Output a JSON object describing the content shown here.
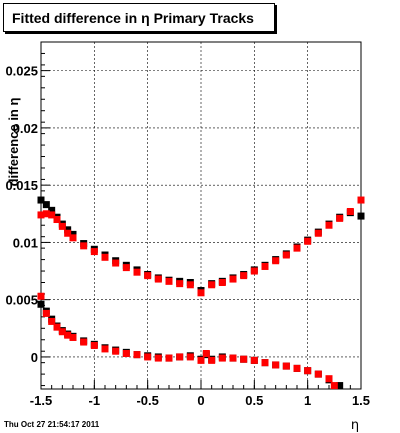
{
  "header": {
    "title": "Fitted difference in  η  Primary Tracks"
  },
  "footer": {
    "timestamp": "Thu Oct 27 21:54:17 2011"
  },
  "chart_data": {
    "type": "scatter",
    "title": "Fitted difference in  η  Primary Tracks",
    "xlabel": "η",
    "ylabel": "difference in η",
    "xlim": [
      -1.5,
      1.5
    ],
    "ylim": [
      -0.0028,
      0.0275
    ],
    "grid": true,
    "x_ticks": [
      -1.5,
      -1,
      -0.5,
      0,
      0.5,
      1,
      1.5
    ],
    "x_tick_labels": [
      "-1.5",
      "-1",
      "-0.5",
      "0",
      "0.5",
      "1",
      "1.5"
    ],
    "y_ticks": [
      0,
      0.005,
      0.01,
      0.015,
      0.02,
      0.025
    ],
    "y_tick_labels": [
      "0",
      "0.005",
      "0.01",
      "0.015",
      "0.02",
      "0.025"
    ],
    "series": [
      {
        "marker": "square",
        "color": "#000000",
        "upper": [
          [
            -1.5,
            0.0137
          ],
          [
            -1.45,
            0.0133
          ],
          [
            -1.4,
            0.0128
          ],
          [
            -1.35,
            0.0122
          ],
          [
            -1.3,
            0.0116
          ],
          [
            -1.25,
            0.0111
          ],
          [
            -1.2,
            0.0107
          ],
          [
            -1.1,
            0.0099
          ],
          [
            -1.0,
            0.0094
          ],
          [
            -0.9,
            0.0089
          ],
          [
            -0.8,
            0.0084
          ],
          [
            -0.7,
            0.008
          ],
          [
            -0.6,
            0.0076
          ],
          [
            -0.5,
            0.0072
          ],
          [
            -0.4,
            0.0069
          ],
          [
            -0.3,
            0.0067
          ],
          [
            -0.2,
            0.0066
          ],
          [
            -0.1,
            0.0065
          ],
          [
            0.0,
            0.0058
          ],
          [
            0.1,
            0.0064
          ],
          [
            0.2,
            0.0066
          ],
          [
            0.3,
            0.0069
          ],
          [
            0.4,
            0.0072
          ],
          [
            0.5,
            0.0076
          ],
          [
            0.6,
            0.008
          ],
          [
            0.7,
            0.0085
          ],
          [
            0.8,
            0.009
          ],
          [
            0.9,
            0.0096
          ],
          [
            1.0,
            0.0102
          ],
          [
            1.1,
            0.0109
          ],
          [
            1.2,
            0.0116
          ],
          [
            1.3,
            0.0122
          ],
          [
            1.4,
            0.0126
          ],
          [
            1.5,
            0.0123
          ]
        ],
        "lower": [
          [
            -1.5,
            0.0046
          ],
          [
            -1.45,
            0.004
          ],
          [
            -1.4,
            0.0033
          ],
          [
            -1.35,
            0.0027
          ],
          [
            -1.3,
            0.0023
          ],
          [
            -1.25,
            0.002
          ],
          [
            -1.2,
            0.0018
          ],
          [
            -1.1,
            0.0014
          ],
          [
            -1.0,
            0.0011
          ],
          [
            -0.9,
            0.0008
          ],
          [
            -0.8,
            0.0006
          ],
          [
            -0.7,
            0.0004
          ],
          [
            -0.6,
            0.0002
          ],
          [
            -0.5,
            0.0001
          ],
          [
            -0.4,
            0.0
          ],
          [
            -0.3,
            -0.0001
          ],
          [
            -0.2,
            0.0
          ],
          [
            -0.1,
            0.0001
          ],
          [
            0.0,
            -0.0002
          ],
          [
            0.05,
            0.0002
          ],
          [
            0.1,
            -0.0002
          ],
          [
            0.2,
            0.0
          ],
          [
            0.3,
            -0.0001
          ],
          [
            0.4,
            -0.0002
          ],
          [
            0.5,
            -0.0003
          ],
          [
            0.6,
            -0.0005
          ],
          [
            0.7,
            -0.0007
          ],
          [
            0.8,
            -0.0008
          ],
          [
            0.9,
            -0.001
          ],
          [
            1.0,
            -0.0012
          ],
          [
            1.1,
            -0.0015
          ],
          [
            1.2,
            -0.002
          ],
          [
            1.3,
            -0.0025
          ]
        ]
      },
      {
        "marker": "square",
        "color": "#ff0000",
        "upper": [
          [
            -1.5,
            0.0124
          ],
          [
            -1.45,
            0.0125
          ],
          [
            -1.4,
            0.0124
          ],
          [
            -1.35,
            0.012
          ],
          [
            -1.3,
            0.0114
          ],
          [
            -1.25,
            0.0108
          ],
          [
            -1.2,
            0.0104
          ],
          [
            -1.1,
            0.0097
          ],
          [
            -1.0,
            0.0092
          ],
          [
            -0.9,
            0.0087
          ],
          [
            -0.8,
            0.0082
          ],
          [
            -0.7,
            0.0078
          ],
          [
            -0.6,
            0.0074
          ],
          [
            -0.5,
            0.0071
          ],
          [
            -0.4,
            0.0068
          ],
          [
            -0.3,
            0.0066
          ],
          [
            -0.2,
            0.0064
          ],
          [
            -0.1,
            0.0063
          ],
          [
            0.0,
            0.0056
          ],
          [
            0.1,
            0.0063
          ],
          [
            0.2,
            0.0065
          ],
          [
            0.3,
            0.0068
          ],
          [
            0.4,
            0.0071
          ],
          [
            0.5,
            0.0075
          ],
          [
            0.6,
            0.0079
          ],
          [
            0.7,
            0.0084
          ],
          [
            0.8,
            0.0089
          ],
          [
            0.9,
            0.0095
          ],
          [
            1.0,
            0.0101
          ],
          [
            1.1,
            0.0108
          ],
          [
            1.2,
            0.0115
          ],
          [
            1.3,
            0.0121
          ],
          [
            1.4,
            0.0127
          ],
          [
            1.5,
            0.0137
          ]
        ],
        "lower": [
          [
            -1.5,
            0.0053
          ],
          [
            -1.45,
            0.0038
          ],
          [
            -1.4,
            0.0031
          ],
          [
            -1.35,
            0.0026
          ],
          [
            -1.3,
            0.0022
          ],
          [
            -1.25,
            0.0019
          ],
          [
            -1.2,
            0.0017
          ],
          [
            -1.1,
            0.0013
          ],
          [
            -1.0,
            0.001
          ],
          [
            -0.9,
            0.0007
          ],
          [
            -0.8,
            0.0005
          ],
          [
            -0.7,
            0.0003
          ],
          [
            -0.6,
            0.0002
          ],
          [
            -0.5,
            0.0
          ],
          [
            -0.4,
            -0.0001
          ],
          [
            -0.3,
            -0.0001
          ],
          [
            -0.2,
            0.0
          ],
          [
            -0.1,
            0.0
          ],
          [
            0.0,
            -0.0003
          ],
          [
            0.05,
            0.0003
          ],
          [
            0.1,
            -0.0003
          ],
          [
            0.2,
            -0.0001
          ],
          [
            0.3,
            -0.0001
          ],
          [
            0.4,
            -0.0002
          ],
          [
            0.5,
            -0.0003
          ],
          [
            0.6,
            -0.0005
          ],
          [
            0.7,
            -0.0007
          ],
          [
            0.8,
            -0.0008
          ],
          [
            0.9,
            -0.001
          ],
          [
            1.0,
            -0.0012
          ],
          [
            1.1,
            -0.0015
          ],
          [
            1.2,
            -0.0019
          ],
          [
            1.25,
            -0.0025
          ]
        ]
      }
    ]
  }
}
